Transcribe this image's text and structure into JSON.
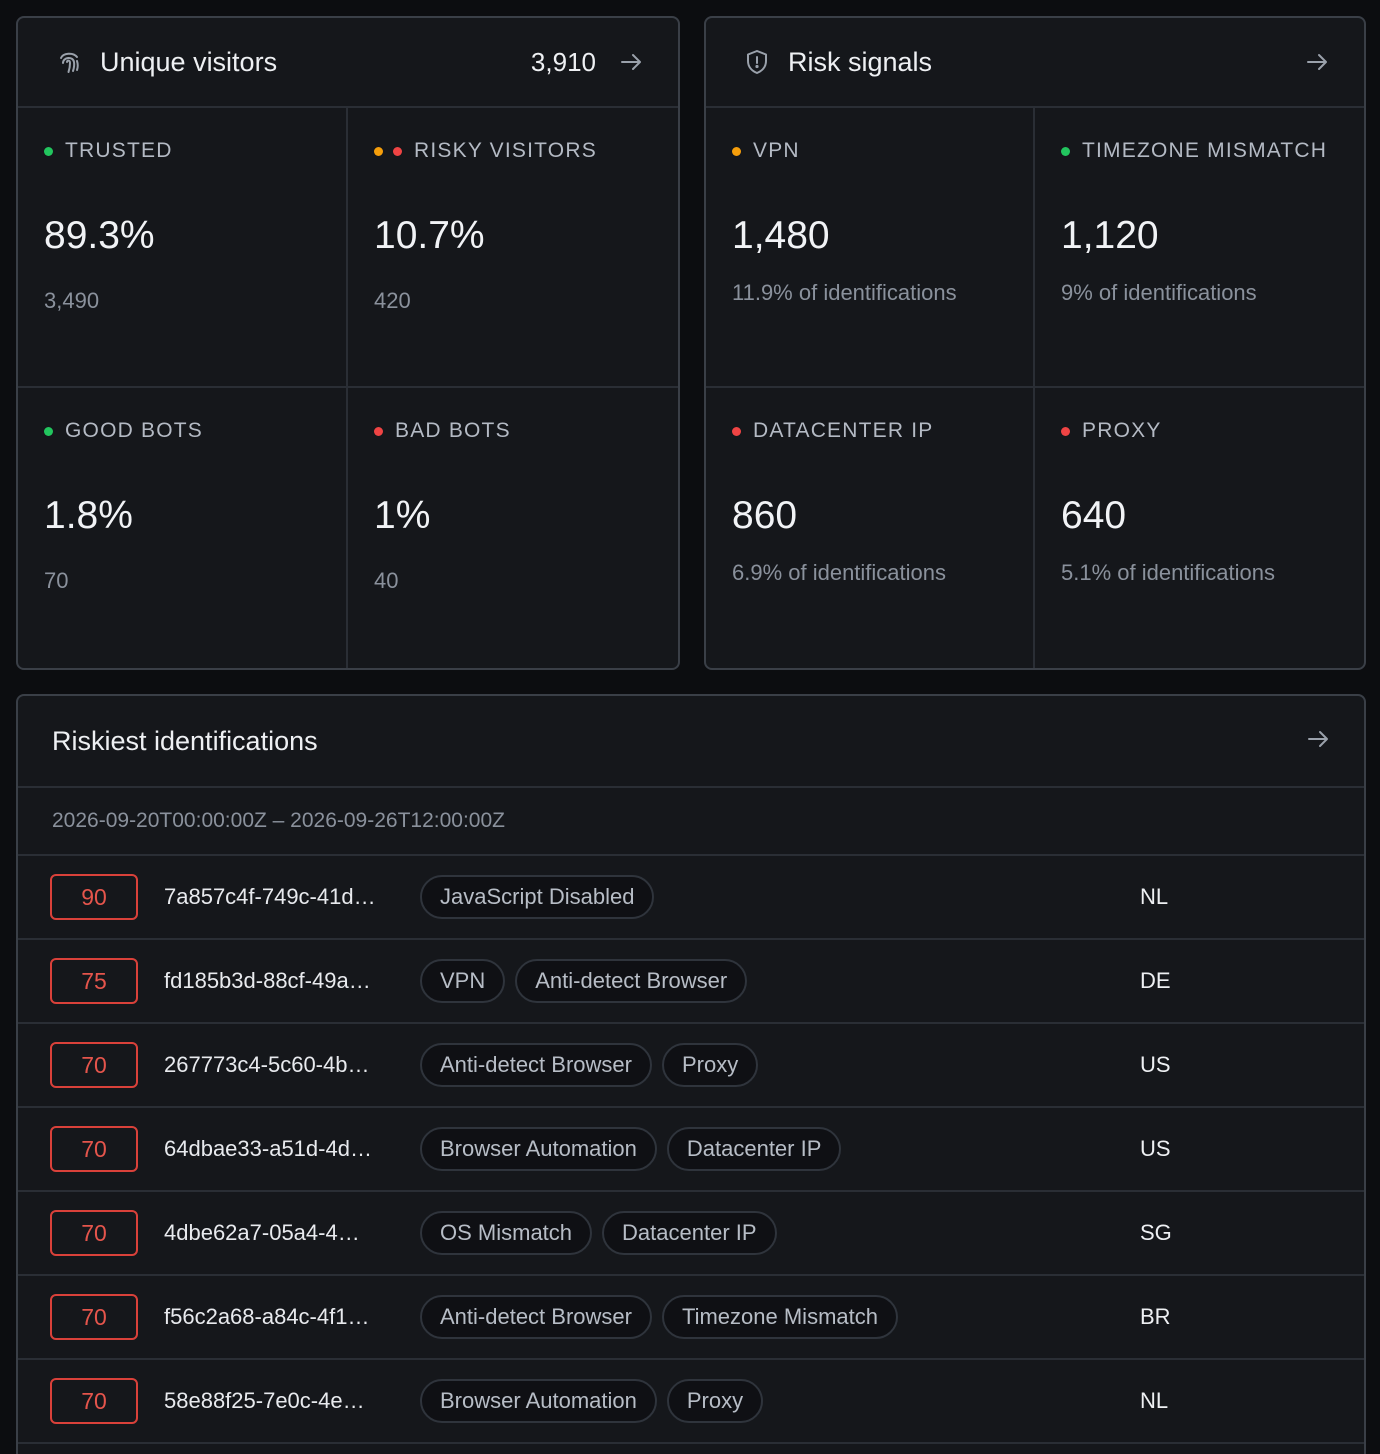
{
  "visitors": {
    "title": "Unique visitors",
    "total": "3,910",
    "icon": "fingerprint-icon",
    "cells": [
      {
        "label": "TRUSTED",
        "value": "89.3%",
        "count": "3,490",
        "dots": [
          "#22c55e"
        ]
      },
      {
        "label": "RISKY VISITORS",
        "value": "10.7%",
        "count": "420",
        "dots": [
          "#f59e0b",
          "#ef4444"
        ]
      },
      {
        "label": "GOOD BOTS",
        "value": "1.8%",
        "count": "70",
        "dots": [
          "#22c55e"
        ]
      },
      {
        "label": "BAD BOTS",
        "value": "1%",
        "count": "40",
        "dots": [
          "#ef4444"
        ]
      }
    ]
  },
  "risk": {
    "title": "Risk signals",
    "icon": "shield-icon",
    "cells": [
      {
        "label": "VPN",
        "value": "1,480",
        "sub": "11.9% of identifications",
        "dots": [
          "#f59e0b"
        ]
      },
      {
        "label": "TIMEZONE MISMATCH",
        "value": "1,120",
        "sub": "9% of identifications",
        "dots": [
          "#22c55e"
        ]
      },
      {
        "label": "DATACENTER IP",
        "value": "860",
        "sub": "6.9% of identifications",
        "dots": [
          "#ef4444"
        ]
      },
      {
        "label": "PROXY",
        "value": "640",
        "sub": "5.1% of identifications",
        "dots": [
          "#ef4444"
        ]
      }
    ]
  },
  "identifications": {
    "title": "Riskiest identifications",
    "range": "2026-09-20T00:00:00Z – 2026-09-26T12:00:00Z",
    "rows": [
      {
        "score": "90",
        "id": "7a857c4f-749c-41d…",
        "tags": [
          "JavaScript Disabled"
        ],
        "country": "NL"
      },
      {
        "score": "75",
        "id": "fd185b3d-88cf-49a…",
        "tags": [
          "VPN",
          "Anti-detect Browser"
        ],
        "country": "DE"
      },
      {
        "score": "70",
        "id": "267773c4-5c60-4b…",
        "tags": [
          "Anti-detect Browser",
          "Proxy"
        ],
        "country": "US"
      },
      {
        "score": "70",
        "id": "64dbae33-a51d-4d…",
        "tags": [
          "Browser Automation",
          "Datacenter IP"
        ],
        "country": "US"
      },
      {
        "score": "70",
        "id": "4dbe62a7-05a4-4…",
        "tags": [
          "OS Mismatch",
          "Datacenter IP"
        ],
        "country": "SG"
      },
      {
        "score": "70",
        "id": "f56c2a68-a84c-4f1…",
        "tags": [
          "Anti-detect Browser",
          "Timezone Mismatch"
        ],
        "country": "BR"
      },
      {
        "score": "70",
        "id": "58e88f25-7e0c-4e…",
        "tags": [
          "Browser Automation",
          "Proxy"
        ],
        "country": "NL"
      }
    ]
  },
  "colors": {
    "accent_red": "#e5554c",
    "green": "#22c55e",
    "orange": "#f59e0b",
    "red": "#ef4444"
  }
}
